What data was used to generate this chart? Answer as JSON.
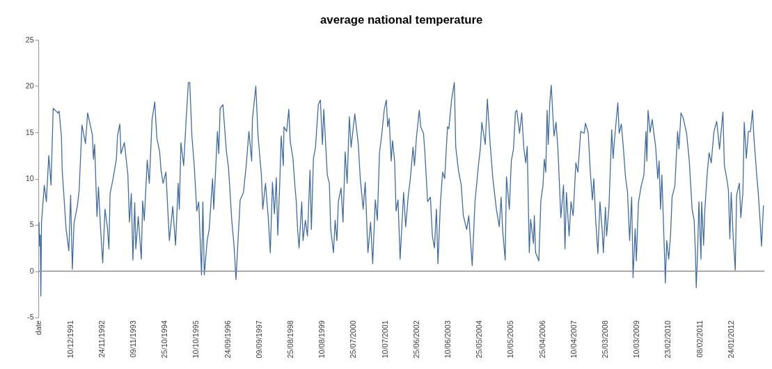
{
  "chart_data": {
    "type": "line",
    "title": "average national temperature",
    "x": [
      "1990-12-25",
      "1991-01-01",
      "1991-01-08",
      "1991-01-15",
      "1991-01-22",
      "1991-02-22",
      "1991-03-17",
      "1991-04-13",
      "1991-05-08",
      "1991-06-01",
      "1991-07-24",
      "1991-08-06",
      "1991-09-01",
      "1991-09-09",
      "1991-10-02",
      "1991-10-22",
      "1991-11-22",
      "1991-12-12",
      "1991-12-31",
      "1992-01-19",
      "1992-02-26",
      "1992-03-16",
      "1992-04-16",
      "1992-05-25",
      "1992-06-18",
      "1992-08-09",
      "1992-08-22",
      "1992-09-04",
      "1992-09-30",
      "1992-10-17",
      "1992-11-08",
      "1992-12-03",
      "1992-12-28",
      "1993-01-23",
      "1993-02-10",
      "1993-02-23",
      "1993-03-26",
      "1993-05-04",
      "1993-05-16",
      "1993-06-11",
      "1993-06-24",
      "1993-08-01",
      "1993-09-09",
      "1993-09-26",
      "1993-10-17",
      "1993-11-04",
      "1993-11-24",
      "1993-12-06",
      "1994-01-02",
      "1994-02-05",
      "1994-02-20",
      "1994-03-10",
      "1994-04-12",
      "1994-05-05",
      "1994-06-05",
      "1994-07-05",
      "1994-07-28",
      "1994-08-28",
      "1994-09-13",
      "1994-10-05",
      "1994-11-06",
      "1994-12-14",
      "1995-01-21",
      "1995-02-21",
      "1995-03-22",
      "1995-04-04",
      "1995-04-22",
      "1995-05-22",
      "1995-06-22",
      "1995-07-14",
      "1995-07-29",
      "1995-08-22",
      "1995-09-15",
      "1995-10-15",
      "1995-11-06",
      "1995-12-07",
      "1995-12-22",
      "1996-01-07",
      "1996-02-08",
      "1996-03-01",
      "1996-04-08",
      "1996-04-21",
      "1996-06-01",
      "1996-06-16",
      "1996-07-01",
      "1996-08-01",
      "1996-09-09",
      "1996-10-02",
      "1996-11-09",
      "1996-12-01",
      "1996-12-24",
      "1997-01-17",
      "1997-02-09",
      "1997-03-17",
      "1997-04-17",
      "1997-05-17",
      "1997-06-17",
      "1997-06-25",
      "1997-08-02",
      "1997-08-25",
      "1997-09-10",
      "1997-10-03",
      "1997-10-18",
      "1997-11-18",
      "1997-12-18",
      "1998-01-10",
      "1998-02-03",
      "1998-02-25",
      "1998-03-18",
      "1998-04-03",
      "1998-04-26",
      "1998-05-11",
      "1998-06-04",
      "1998-06-11",
      "1998-07-11",
      "1998-08-04",
      "1998-08-19",
      "1998-09-19",
      "1998-10-11",
      "1998-10-26",
      "1998-11-11",
      "1998-11-26",
      "1998-12-26",
      "1999-01-09",
      "1999-02-04",
      "1999-02-27",
      "1999-03-28",
      "1999-04-12",
      "1999-05-05",
      "1999-05-28",
      "1999-06-28",
      "1999-07-21",
      "1999-08-13",
      "1999-08-28",
      "1999-10-06",
      "1999-10-29",
      "1999-11-13",
      "1999-12-14",
      "2000-01-01",
      "2000-01-21",
      "2000-02-06",
      "2000-03-07",
      "2000-03-29",
      "2000-04-22",
      "2000-05-14",
      "2000-06-07",
      "2000-06-27",
      "2000-08-07",
      "2000-09-15",
      "2000-10-07",
      "2000-11-08",
      "2000-12-01",
      "2000-12-31",
      "2001-01-30",
      "2001-02-22",
      "2001-03-23",
      "2001-04-15",
      "2001-05-08",
      "2001-06-01",
      "2001-07-01",
      "2001-07-24",
      "2001-08-08",
      "2001-08-24",
      "2001-09-16",
      "2001-10-01",
      "2001-10-24",
      "2001-11-09",
      "2001-12-01",
      "2001-12-24",
      "2002-02-01",
      "2002-02-24",
      "2002-03-25",
      "2002-04-17",
      "2002-05-17",
      "2002-06-02",
      "2002-06-25",
      "2002-07-25",
      "2002-08-10",
      "2002-09-10",
      "2002-09-25",
      "2002-10-26",
      "2002-11-26",
      "2002-12-18",
      "2003-01-10",
      "2003-02-01",
      "2003-02-18",
      "2003-03-18",
      "2003-04-11",
      "2003-05-04",
      "2003-06-04",
      "2003-06-19",
      "2003-07-19",
      "2003-08-19",
      "2003-09-04",
      "2003-10-04",
      "2003-11-04",
      "2003-11-27",
      "2004-01-04",
      "2004-01-27",
      "2004-03-05",
      "2004-04-05",
      "2004-05-13",
      "2004-06-05",
      "2004-06-20",
      "2004-07-28",
      "2004-08-21",
      "2004-09-21",
      "2004-10-21",
      "2004-11-29",
      "2004-12-31",
      "2005-01-21",
      "2005-02-06",
      "2005-03-07",
      "2005-03-21",
      "2005-04-22",
      "2005-05-14",
      "2005-06-07",
      "2005-06-29",
      "2005-07-14",
      "2005-08-14",
      "2005-09-07",
      "2005-09-30",
      "2005-10-22",
      "2005-11-07",
      "2005-11-30",
      "2005-12-15",
      "2006-01-15",
      "2006-01-25",
      "2006-02-08",
      "2006-03-16",
      "2006-04-08",
      "2006-05-01",
      "2006-05-16",
      "2006-06-01",
      "2006-06-16",
      "2006-06-29",
      "2006-07-16",
      "2006-08-01",
      "2006-09-01",
      "2006-09-24",
      "2006-10-16",
      "2006-11-16",
      "2006-12-16",
      "2007-01-01",
      "2007-01-17",
      "2007-02-16",
      "2007-03-09",
      "2007-04-02",
      "2007-05-02",
      "2007-05-25",
      "2007-06-25",
      "2007-08-02",
      "2007-08-17",
      "2007-09-17",
      "2007-10-10",
      "2007-11-02",
      "2007-11-18",
      "2007-12-10",
      "2008-01-02",
      "2008-01-25",
      "2008-02-18",
      "2008-03-03",
      "2008-03-26",
      "2008-04-08",
      "2008-05-04",
      "2008-06-04",
      "2008-06-19",
      "2008-07-11",
      "2008-08-11",
      "2008-08-26",
      "2008-09-19",
      "2008-10-11",
      "2008-11-04",
      "2008-11-27",
      "2008-12-20",
      "2009-01-12",
      "2009-01-27",
      "2009-02-20",
      "2009-03-05",
      "2009-03-28",
      "2009-04-28",
      "2009-05-28",
      "2009-06-20",
      "2009-06-30",
      "2009-07-13",
      "2009-08-05",
      "2009-08-28",
      "2009-10-06",
      "2009-10-29",
      "2009-11-13",
      "2009-11-29",
      "2009-12-14",
      "2009-12-31",
      "2010-01-14",
      "2010-01-21",
      "2010-02-06",
      "2010-02-28",
      "2010-03-21",
      "2010-04-06",
      "2010-05-07",
      "2010-06-07",
      "2010-06-22",
      "2010-07-14",
      "2010-08-07",
      "2010-09-15",
      "2010-10-15",
      "2010-11-15",
      "2010-12-08",
      "2010-12-23",
      "2010-12-31",
      "2011-01-15",
      "2011-01-30",
      "2011-02-22",
      "2011-03-01",
      "2011-03-23",
      "2011-04-05",
      "2011-05-01",
      "2011-05-23",
      "2011-06-16",
      "2011-07-16",
      "2011-08-16",
      "2011-09-16",
      "2011-10-24",
      "2011-11-09",
      "2011-12-02",
      "2011-12-24",
      "2012-01-09",
      "2012-01-24",
      "2012-02-16",
      "2012-03-09",
      "2012-03-24",
      "2012-04-24",
      "2012-05-10",
      "2012-06-02",
      "2012-06-17",
      "2012-07-10",
      "2012-08-02",
      "2012-08-25",
      "2012-09-17",
      "2012-10-03",
      "2012-11-03",
      "2012-11-18",
      "2012-12-10",
      "2012-12-26",
      "2013-01-17"
    ],
    "series": [
      {
        "color": "#3d6aa3",
        "values": [
          5.3,
          2.7,
          3.9,
          -2.7,
          5.3,
          9.3,
          7.5,
          12.5,
          9.3,
          17.6,
          17.1,
          17.3,
          14.5,
          10.9,
          7.6,
          4.6,
          2.2,
          8.2,
          0.2,
          5.2,
          7.1,
          8.8,
          15.8,
          13.8,
          17.1,
          14.8,
          12.1,
          13.7,
          5.9,
          9.1,
          4.8,
          0.9,
          6.7,
          4.8,
          2.4,
          8.4,
          9.9,
          12.1,
          14.6,
          15.9,
          12.7,
          13.9,
          10.4,
          5.3,
          8.4,
          1.2,
          7.4,
          2.4,
          5.9,
          1.3,
          7.6,
          5.5,
          12.0,
          9.5,
          16.4,
          18.3,
          14.4,
          12.9,
          10.9,
          9.5,
          10.7,
          3.3,
          7.0,
          2.8,
          9.5,
          6.7,
          13.9,
          11.4,
          16.9,
          20.4,
          20.4,
          14.6,
          11.7,
          6.5,
          7.5,
          -0.4,
          7.5,
          -0.4,
          3.3,
          4.5,
          10.0,
          6.7,
          15.1,
          12.7,
          17.6,
          18.0,
          12.9,
          11.2,
          5.3,
          3.0,
          -0.9,
          3.5,
          7.7,
          8.5,
          11.4,
          15.1,
          11.9,
          16.4,
          20.0,
          14.9,
          13.0,
          10.4,
          6.7,
          9.5,
          5.8,
          2.0,
          9.6,
          6.2,
          10.1,
          3.9,
          9.7,
          14.6,
          11.4,
          15.6,
          15.1,
          17.5,
          14.1,
          12.2,
          9.2,
          7.5,
          4.3,
          2.5,
          7.5,
          3.3,
          5.5,
          3.8,
          10.9,
          4.5,
          12.2,
          13.4,
          18.0,
          18.5,
          13.7,
          17.5,
          10.4,
          9.5,
          4.5,
          2.0,
          5.5,
          3.3,
          7.5,
          9.0,
          5.3,
          12.9,
          9.5,
          16.7,
          13.4,
          17.0,
          13.7,
          10.0,
          6.7,
          9.6,
          2.0,
          5.3,
          0.8,
          7.7,
          5.5,
          12.7,
          14.6,
          17.5,
          18.5,
          15.6,
          16.5,
          11.9,
          14.1,
          11.9,
          6.5,
          7.7,
          1.3,
          8.5,
          4.8,
          8.2,
          10.0,
          13.4,
          11.4,
          14.6,
          17.4,
          15.6,
          14.9,
          12.9,
          7.5,
          8.0,
          3.8,
          2.5,
          6.7,
          0.8,
          7.5,
          10.7,
          10.0,
          15.6,
          15.4,
          18.5,
          20.4,
          13.4,
          10.9,
          9.3,
          6.0,
          4.5,
          6.0,
          0.6,
          7.5,
          11.4,
          13.4,
          16.1,
          13.7,
          18.6,
          13.7,
          10.0,
          6.7,
          4.8,
          8.0,
          4.5,
          1.2,
          10.2,
          6.7,
          11.9,
          13.2,
          17.2,
          17.4,
          14.9,
          17.1,
          13.3,
          11.7,
          13.5,
          2.0,
          5.6,
          3.0,
          6.0,
          2.0,
          1.1,
          7.7,
          9.2,
          12.1,
          10.7,
          17.4,
          13.7,
          18.2,
          20.1,
          14.6,
          16.1,
          12.9,
          5.8,
          9.3,
          2.4,
          8.5,
          3.8,
          7.5,
          6.0,
          11.7,
          10.7,
          15.1,
          14.9,
          16.0,
          14.9,
          10.7,
          7.7,
          10.0,
          5.3,
          1.9,
          7.5,
          4.5,
          2.0,
          6.9,
          3.8,
          6.9,
          15.3,
          12.2,
          14.9,
          18.2,
          14.9,
          15.9,
          13.4,
          10.2,
          8.5,
          3.3,
          8.0,
          -0.7,
          4.6,
          1.1,
          7.4,
          9.2,
          10.4,
          15.1,
          11.9,
          17.4,
          15.0,
          16.4,
          13.4,
          10.0,
          11.9,
          6.7,
          10.4,
          5.3,
          1.3,
          -1.3,
          3.3,
          1.3,
          4.0,
          8.0,
          9.2,
          15.1,
          13.2,
          17.1,
          16.6,
          14.9,
          11.9,
          6.7,
          5.5,
          1.6,
          -1.8,
          2.0,
          7.5,
          1.3,
          7.5,
          2.8,
          6.5,
          10.4,
          12.8,
          11.7,
          15.1,
          16.2,
          13.2,
          17.2,
          11.4,
          10.2,
          8.8,
          3.5,
          8.5,
          3.5,
          0.1,
          8.2,
          9.5,
          5.8,
          8.5,
          16.1,
          12.2,
          15.1,
          15.1,
          17.4,
          14.4,
          10.4,
          8.7,
          5.5,
          2.7,
          7.1
        ]
      }
    ],
    "xlim": [
      "1990-12-18",
      "2013-01-28"
    ],
    "xticks": [
      {
        "value": "1990-12-25",
        "label": "date"
      },
      {
        "value": "1991-12-10",
        "label": "10/12/1991"
      },
      {
        "value": "1992-11-24",
        "label": "24/11/1992"
      },
      {
        "value": "1993-11-09",
        "label": "09/11/1993"
      },
      {
        "value": "1994-10-25",
        "label": "25/10/1994"
      },
      {
        "value": "1995-10-10",
        "label": "10/10/1995"
      },
      {
        "value": "1996-09-24",
        "label": "24/09/1996"
      },
      {
        "value": "1997-09-09",
        "label": "09/09/1997"
      },
      {
        "value": "1998-08-25",
        "label": "25/08/1998"
      },
      {
        "value": "1999-08-10",
        "label": "10/08/1999"
      },
      {
        "value": "2000-07-25",
        "label": "25/07/2000"
      },
      {
        "value": "2001-07-10",
        "label": "10/07/2001"
      },
      {
        "value": "2002-06-25",
        "label": "25/06/2002"
      },
      {
        "value": "2003-06-10",
        "label": "10/06/2003"
      },
      {
        "value": "2004-05-25",
        "label": "25/05/2004"
      },
      {
        "value": "2005-05-10",
        "label": "10/05/2005"
      },
      {
        "value": "2006-04-25",
        "label": "25/04/2006"
      },
      {
        "value": "2007-04-10",
        "label": "10/04/2007"
      },
      {
        "value": "2008-03-25",
        "label": "25/03/2008"
      },
      {
        "value": "2009-03-10",
        "label": "10/03/2009"
      },
      {
        "value": "2010-02-23",
        "label": "23/02/2010"
      },
      {
        "value": "2011-02-08",
        "label": "08/02/2011"
      },
      {
        "value": "2012-01-24",
        "label": "24/01/2012"
      }
    ],
    "ylim": [
      -5,
      25
    ],
    "yticks": [
      -5,
      0,
      5,
      10,
      15,
      20,
      25
    ],
    "ref_lines": [
      {
        "axis": "y",
        "value": 0,
        "color": "#8c8c8c"
      }
    ],
    "grid": false,
    "marker": "none",
    "line_style": "solid"
  }
}
